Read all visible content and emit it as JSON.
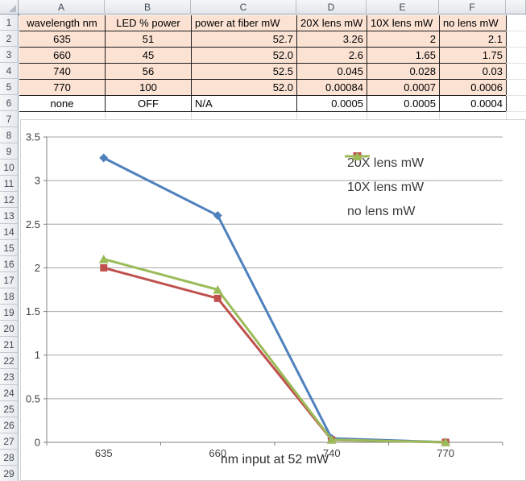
{
  "spreadsheet": {
    "column_headers": [
      "A",
      "B",
      "C",
      "D",
      "E",
      "F"
    ],
    "visible_rows_from": 1,
    "visible_rows_to": 29,
    "table": {
      "headers": [
        "wavelength nm",
        "LED % power",
        "power at fiber mW",
        "20X lens mW",
        "10X lens mW",
        "no lens mW"
      ],
      "rows": [
        [
          "635",
          "51",
          "52.7",
          "3.26",
          "2",
          "2.1"
        ],
        [
          "660",
          "45",
          "52.0",
          "2.6",
          "1.65",
          "1.75"
        ],
        [
          "740",
          "56",
          "52.5",
          "0.045",
          "0.028",
          "0.03"
        ],
        [
          "770",
          "100",
          "52.0",
          "0.00084",
          "0.0007",
          "0.0006"
        ],
        [
          "none",
          "OFF",
          "N/A",
          "0.0005",
          "0.0005",
          "0.0004"
        ]
      ],
      "fill_color": "#FBE2D3"
    }
  },
  "chart_data": {
    "type": "line",
    "categories": [
      "635",
      "660",
      "740",
      "770"
    ],
    "series": [
      {
        "name": "20X lens mW",
        "color": "#4F81BD",
        "marker": "diamond",
        "values": [
          3.26,
          2.6,
          0.045,
          0.00084
        ]
      },
      {
        "name": "10X lens mW",
        "color": "#C0504D",
        "marker": "square",
        "values": [
          2,
          1.65,
          0.028,
          0.0007
        ]
      },
      {
        "name": "no lens mW",
        "color": "#9BBB59",
        "marker": "triangle",
        "values": [
          2.1,
          1.75,
          0.03,
          0.0006
        ]
      }
    ],
    "xlabel": "nm input at 52 mW",
    "ylabel": "",
    "ylim": [
      0,
      3.5
    ],
    "ytick_step": 0.5,
    "yticks": [
      "0",
      "0.5",
      "1",
      "1.5",
      "2",
      "2.5",
      "3",
      "3.5"
    ],
    "grid": true,
    "legend_position": "inside-right",
    "gridline_color": "#A6A6A6",
    "axis_color": "#808080",
    "tick_label_color": "#404040"
  }
}
